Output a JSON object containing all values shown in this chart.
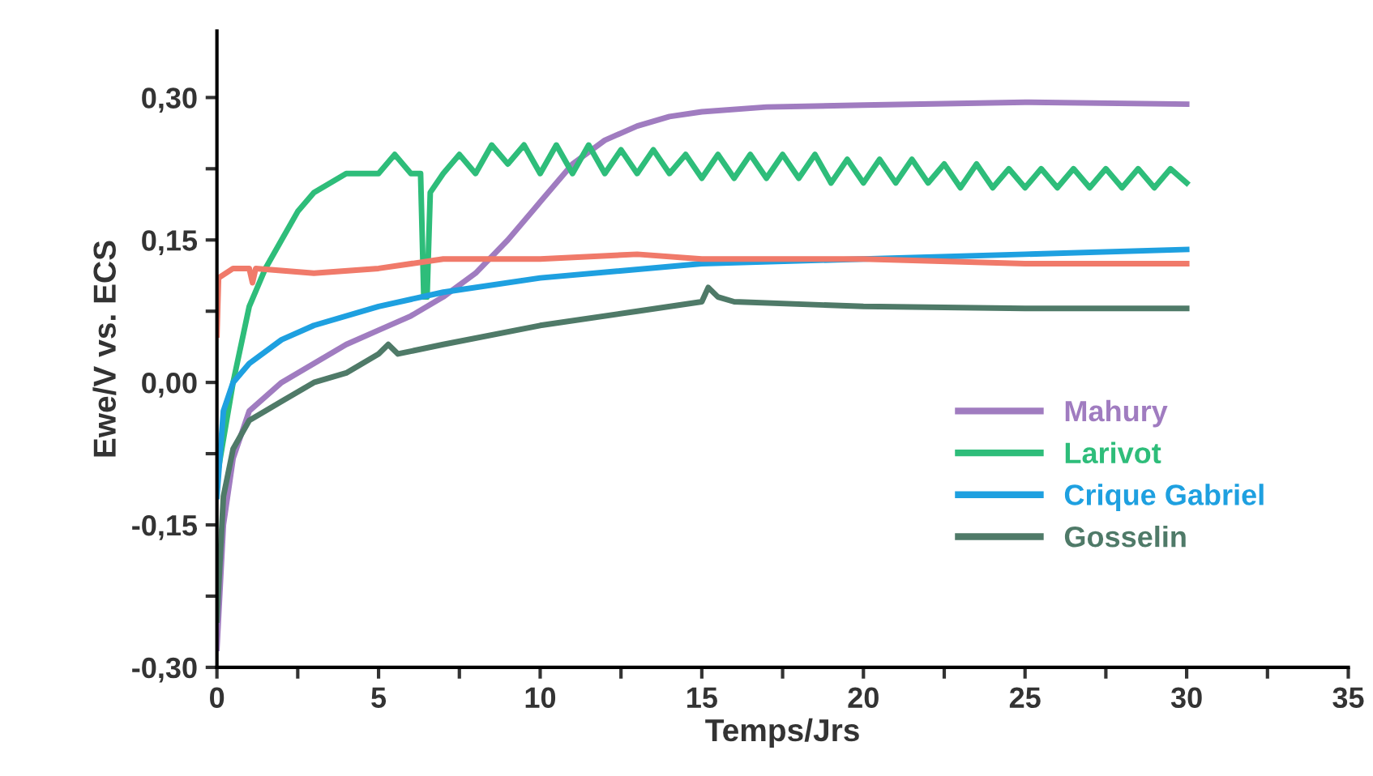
{
  "chart_data": {
    "type": "line",
    "xlabel": "Temps/Jrs",
    "ylabel": "Ewe/V vs. ECS",
    "xlim": [
      0,
      35
    ],
    "ylim": [
      -0.3,
      0.37
    ],
    "xticks": [
      0,
      {
        "value": 2.5,
        "label": null
      },
      5,
      {
        "value": 7.5,
        "label": null
      },
      10,
      {
        "value": 12.5,
        "label": null
      },
      15,
      {
        "value": 17.5,
        "label": null
      },
      20,
      {
        "value": 22.5,
        "label": null
      },
      25,
      {
        "value": 27.5,
        "label": null
      },
      30,
      {
        "value": 32.5,
        "label": null
      },
      35
    ],
    "yticks": [
      {
        "value": -0.3,
        "label": "-0,30"
      },
      {
        "value": -0.225,
        "label": null
      },
      {
        "value": -0.15,
        "label": "-0,15"
      },
      {
        "value": -0.075,
        "label": null
      },
      {
        "value": 0,
        "label": "0,00"
      },
      {
        "value": 0.075,
        "label": null
      },
      {
        "value": 0.15,
        "label": "0,15"
      },
      {
        "value": 0.225,
        "label": null
      },
      {
        "value": 0.3,
        "label": "0,30"
      }
    ],
    "grid": false,
    "legend": "right",
    "marker": "none",
    "line_style": "solid",
    "series": [
      {
        "name": "Mahury",
        "color": "#a07cc0",
        "x": [
          0,
          0.2,
          0.5,
          1,
          2,
          3,
          4,
          5,
          6,
          7,
          8,
          9,
          10,
          11,
          12,
          13,
          14,
          15,
          17,
          20,
          25,
          30
        ],
        "values": [
          -0.28,
          -0.15,
          -0.08,
          -0.03,
          0.0,
          0.02,
          0.04,
          0.055,
          0.07,
          0.09,
          0.115,
          0.15,
          0.19,
          0.23,
          0.255,
          0.27,
          0.28,
          0.285,
          0.29,
          0.292,
          0.295,
          0.293
        ]
      },
      {
        "name": "Larivot",
        "color": "#2ebd7a",
        "x": [
          0,
          0.5,
          1,
          1.5,
          2,
          2.5,
          3,
          3.5,
          4,
          5,
          5.5,
          6,
          6.3,
          6.4,
          6.5,
          6.6,
          7,
          7.5,
          8,
          8.5,
          9,
          9.5,
          10,
          10.5,
          11,
          11.5,
          12,
          12.5,
          13,
          13.5,
          14,
          14.5,
          15,
          15.5,
          16,
          16.5,
          17,
          17.5,
          18,
          18.5,
          19,
          19.5,
          20,
          20.5,
          21,
          21.5,
          22,
          22.5,
          23,
          23.5,
          24,
          24.5,
          25,
          25.5,
          26,
          26.5,
          27,
          27.5,
          28,
          28.5,
          29,
          29.5,
          30
        ],
        "values": [
          -0.1,
          0.0,
          0.08,
          0.12,
          0.15,
          0.18,
          0.2,
          0.21,
          0.22,
          0.22,
          0.24,
          0.22,
          0.22,
          0.09,
          0.09,
          0.2,
          0.22,
          0.24,
          0.22,
          0.25,
          0.23,
          0.25,
          0.22,
          0.25,
          0.22,
          0.25,
          0.22,
          0.245,
          0.22,
          0.245,
          0.22,
          0.24,
          0.215,
          0.24,
          0.215,
          0.24,
          0.215,
          0.24,
          0.215,
          0.24,
          0.21,
          0.235,
          0.21,
          0.235,
          0.21,
          0.235,
          0.21,
          0.23,
          0.205,
          0.23,
          0.205,
          0.225,
          0.205,
          0.225,
          0.205,
          0.225,
          0.205,
          0.225,
          0.205,
          0.225,
          0.205,
          0.225,
          0.21
        ]
      },
      {
        "name": "Crique Gabriel",
        "color": "#1ea0e0",
        "x": [
          0,
          0.2,
          0.5,
          1,
          2,
          3,
          5,
          7,
          10,
          15,
          20,
          25,
          30
        ],
        "values": [
          -0.12,
          -0.03,
          0.0,
          0.02,
          0.045,
          0.06,
          0.08,
          0.095,
          0.11,
          0.125,
          0.13,
          0.135,
          0.14
        ]
      },
      {
        "color": "#f07a6a",
        "x": [
          0,
          0.05,
          0.5,
          1.0,
          1.1,
          1.2,
          3,
          5,
          7,
          10,
          13,
          15,
          20,
          25,
          30
        ],
        "values": [
          0.05,
          0.11,
          0.12,
          0.12,
          0.105,
          0.12,
          0.115,
          0.12,
          0.13,
          0.13,
          0.135,
          0.13,
          0.13,
          0.125,
          0.125
        ]
      },
      {
        "name": "Gosselin",
        "color": "#4f7a68",
        "x": [
          0,
          0.2,
          0.5,
          1,
          2,
          3,
          4,
          5,
          5.3,
          5.6,
          7,
          10,
          13,
          15,
          15.2,
          15.5,
          16,
          20,
          25,
          30
        ],
        "values": [
          -0.25,
          -0.12,
          -0.07,
          -0.04,
          -0.02,
          0.0,
          0.01,
          0.03,
          0.04,
          0.03,
          0.04,
          0.06,
          0.075,
          0.085,
          0.1,
          0.09,
          0.085,
          0.08,
          0.078,
          0.078
        ]
      }
    ]
  }
}
